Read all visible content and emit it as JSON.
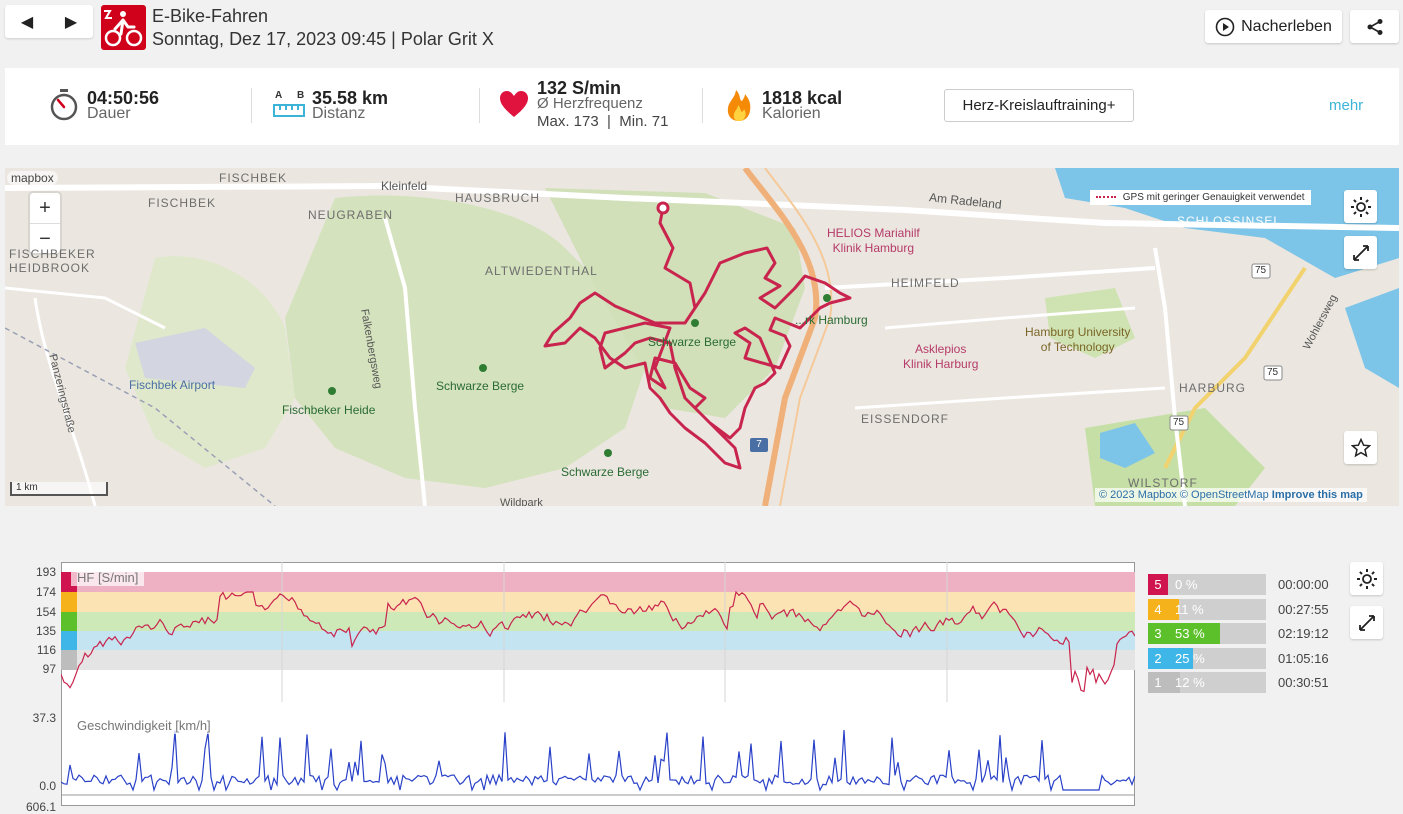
{
  "header": {
    "sport": "E-Bike-Fahren",
    "subtitle": "Sonntag, Dez 17, 2023 09:45 | Polar Grit X",
    "replay_label": "Nacherleben",
    "prev_glyph": "◀",
    "next_glyph": "▶"
  },
  "summary": {
    "duration_value": "04:50:56",
    "duration_label": "Dauer",
    "distance_value": "35.58 km",
    "distance_label": "Distanz",
    "distance_icon_a": "A",
    "distance_icon_b": "B",
    "hr_value": "132 S/min",
    "hr_label": "Ø Herzfrequenz",
    "hr_minmax": "Max. 173  |  Min. 71",
    "calories_value": "1818 kcal",
    "calories_label": "Kalorien",
    "benefit": "Herz-Kreislauftraining+",
    "more": "mehr"
  },
  "map": {
    "attribution_logo": "mapbox",
    "zoom_in": "+",
    "zoom_out": "−",
    "legend": "GPS mit geringer Genauigkeit verwendet",
    "scale": "1 km",
    "copyright_prefix": "© 2023 Mapbox © OpenStreetMap",
    "improve": "Improve this map",
    "labels": {
      "fischbek_n": "FISCHBEK",
      "fischbek": "FISCHBEK",
      "neugraben": "NEUGRABEN",
      "hausbruch": "HAUSBRUCH",
      "kleinfeld": "Kleinfeld",
      "am_radeland": "Am Radeland",
      "heidbrook": "FISCHBEKER\nHEIDBROOK",
      "altwiedenthal": "ALTWIEDENTHAL",
      "falkenbergsweg": "Falkenbergsweg",
      "panzeringstrasse": "Panzeringstraße",
      "airport": "Fischbek Airport",
      "fischbeker_heide": "Fischbeker Heide",
      "schwarze_berge_1": "Schwarze Berge",
      "schwarze_berge_2": "Schwarze Berge",
      "schwarze_berge_3": "Schwarze Berge",
      "helios": "HELIOS Mariahilf\nKlinik Hamburg",
      "heimfeld": "HEIMFELD",
      "asklepios": "Asklepios\nKlinik Harburg",
      "tuhh": "Hamburg University\nof Technology",
      "eissendorf": "EISSENDORF",
      "harburg": "HARBURG",
      "schlossinsel": "SCHLOSSINSEL",
      "wilstorf": "WILSTORF",
      "wohlersweg": "Wohlersweg",
      "hamburg_zoo": "...rk Hamburg",
      "wildpark": "Wildpark",
      "a7": "7",
      "b75a": "75",
      "b75b": "75",
      "b75c": "75"
    }
  },
  "hr_chart": {
    "label": "HF [S/min]",
    "yticks": [
      "193",
      "174",
      "154",
      "135",
      "116",
      "97"
    ]
  },
  "speed_chart": {
    "label": "Geschwindigkeit [km/h]",
    "ymax": "37.3",
    "ymin": "0.0",
    "next_tick": "606.1"
  },
  "zones": [
    {
      "n": "5",
      "pct": "0 %",
      "time": "00:00:00",
      "frac": 0.0,
      "color": "#d0144f"
    },
    {
      "n": "4",
      "pct": "11 %",
      "time": "00:27:55",
      "frac": 0.11,
      "color": "#f5b21b"
    },
    {
      "n": "3",
      "pct": "53 %",
      "time": "02:19:12",
      "frac": 0.53,
      "color": "#5cc02a"
    },
    {
      "n": "2",
      "pct": "25 %",
      "time": "01:05:16",
      "frac": 0.25,
      "color": "#3fb6e8"
    },
    {
      "n": "1",
      "pct": "12 %",
      "time": "00:30:51",
      "frac": 0.12,
      "color": "#bdbdbd"
    }
  ]
}
